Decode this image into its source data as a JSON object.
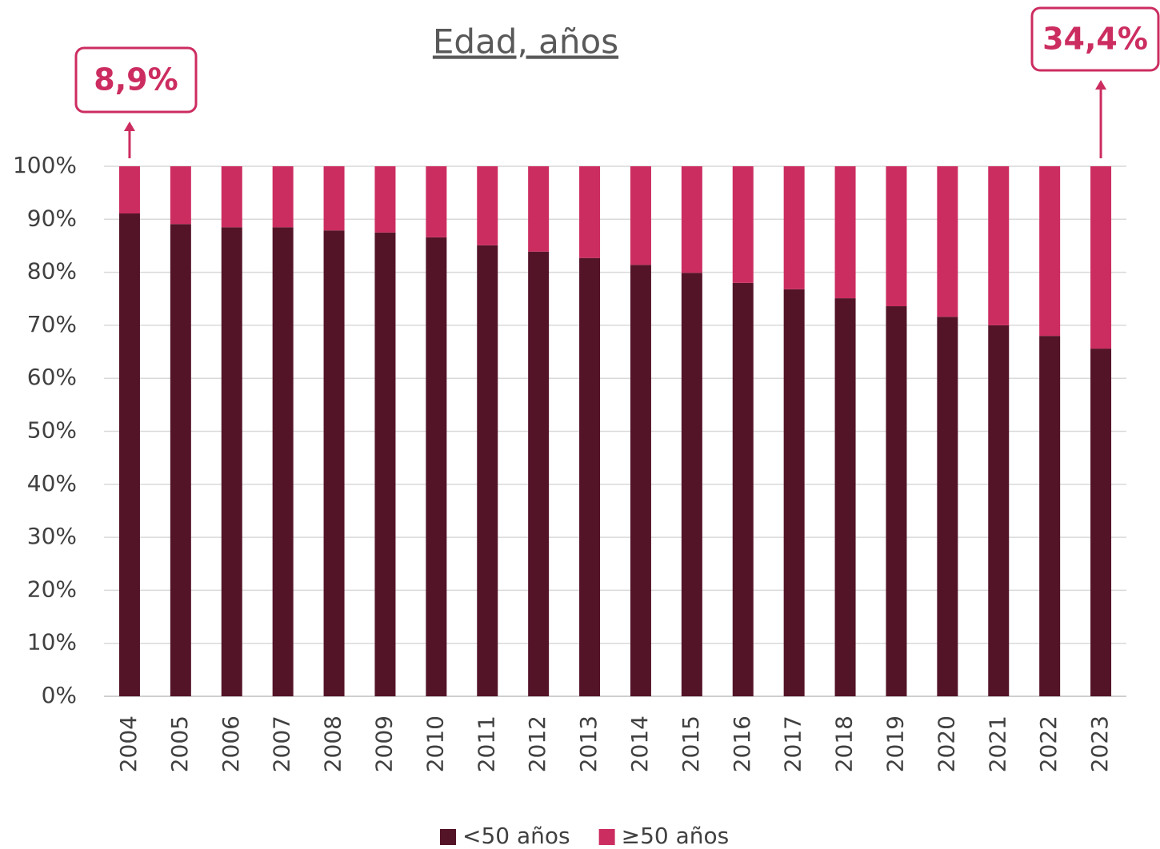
{
  "chart_data": {
    "type": "stacked_bar",
    "title": "Edad, años",
    "categories": [
      "2004",
      "2005",
      "2006",
      "2007",
      "2008",
      "2009",
      "2010",
      "2011",
      "2012",
      "2013",
      "2014",
      "2015",
      "2016",
      "2017",
      "2018",
      "2019",
      "2020",
      "2021",
      "2022",
      "2023"
    ],
    "series": [
      {
        "name": "<50 años",
        "color": "#541428",
        "values": [
          91.1,
          89.1,
          88.5,
          88.5,
          87.9,
          87.5,
          86.6,
          85.1,
          83.9,
          82.7,
          81.4,
          79.9,
          78.0,
          76.8,
          75.1,
          73.6,
          71.6,
          70.0,
          68.0,
          65.6
        ]
      },
      {
        "name": "≥50 años",
        "color": "#cc2d60",
        "values": [
          8.9,
          10.9,
          11.5,
          11.5,
          12.1,
          12.5,
          13.4,
          14.9,
          16.1,
          17.3,
          18.6,
          20.1,
          22.0,
          23.2,
          24.9,
          26.4,
          28.4,
          30.0,
          32.0,
          34.4
        ],
        "value_labels": [
          "8,9%",
          null,
          null,
          null,
          null,
          null,
          null,
          null,
          null,
          null,
          null,
          null,
          null,
          null,
          null,
          null,
          null,
          null,
          null,
          "34,4%"
        ]
      }
    ],
    "ylim": [
      0,
      100
    ],
    "yticks": [
      {
        "value": 0,
        "label": "0%"
      },
      {
        "value": 10,
        "label": "10%"
      },
      {
        "value": 20,
        "label": "20%"
      },
      {
        "value": 30,
        "label": "30%"
      },
      {
        "value": 40,
        "label": "40%"
      },
      {
        "value": 50,
        "label": "50%"
      },
      {
        "value": 60,
        "label": "60%"
      },
      {
        "value": 70,
        "label": "70%"
      },
      {
        "value": 80,
        "label": "80%"
      },
      {
        "value": 90,
        "label": "90%"
      },
      {
        "value": 100,
        "label": "100%"
      }
    ],
    "grid": true,
    "legend": "bottom"
  }
}
